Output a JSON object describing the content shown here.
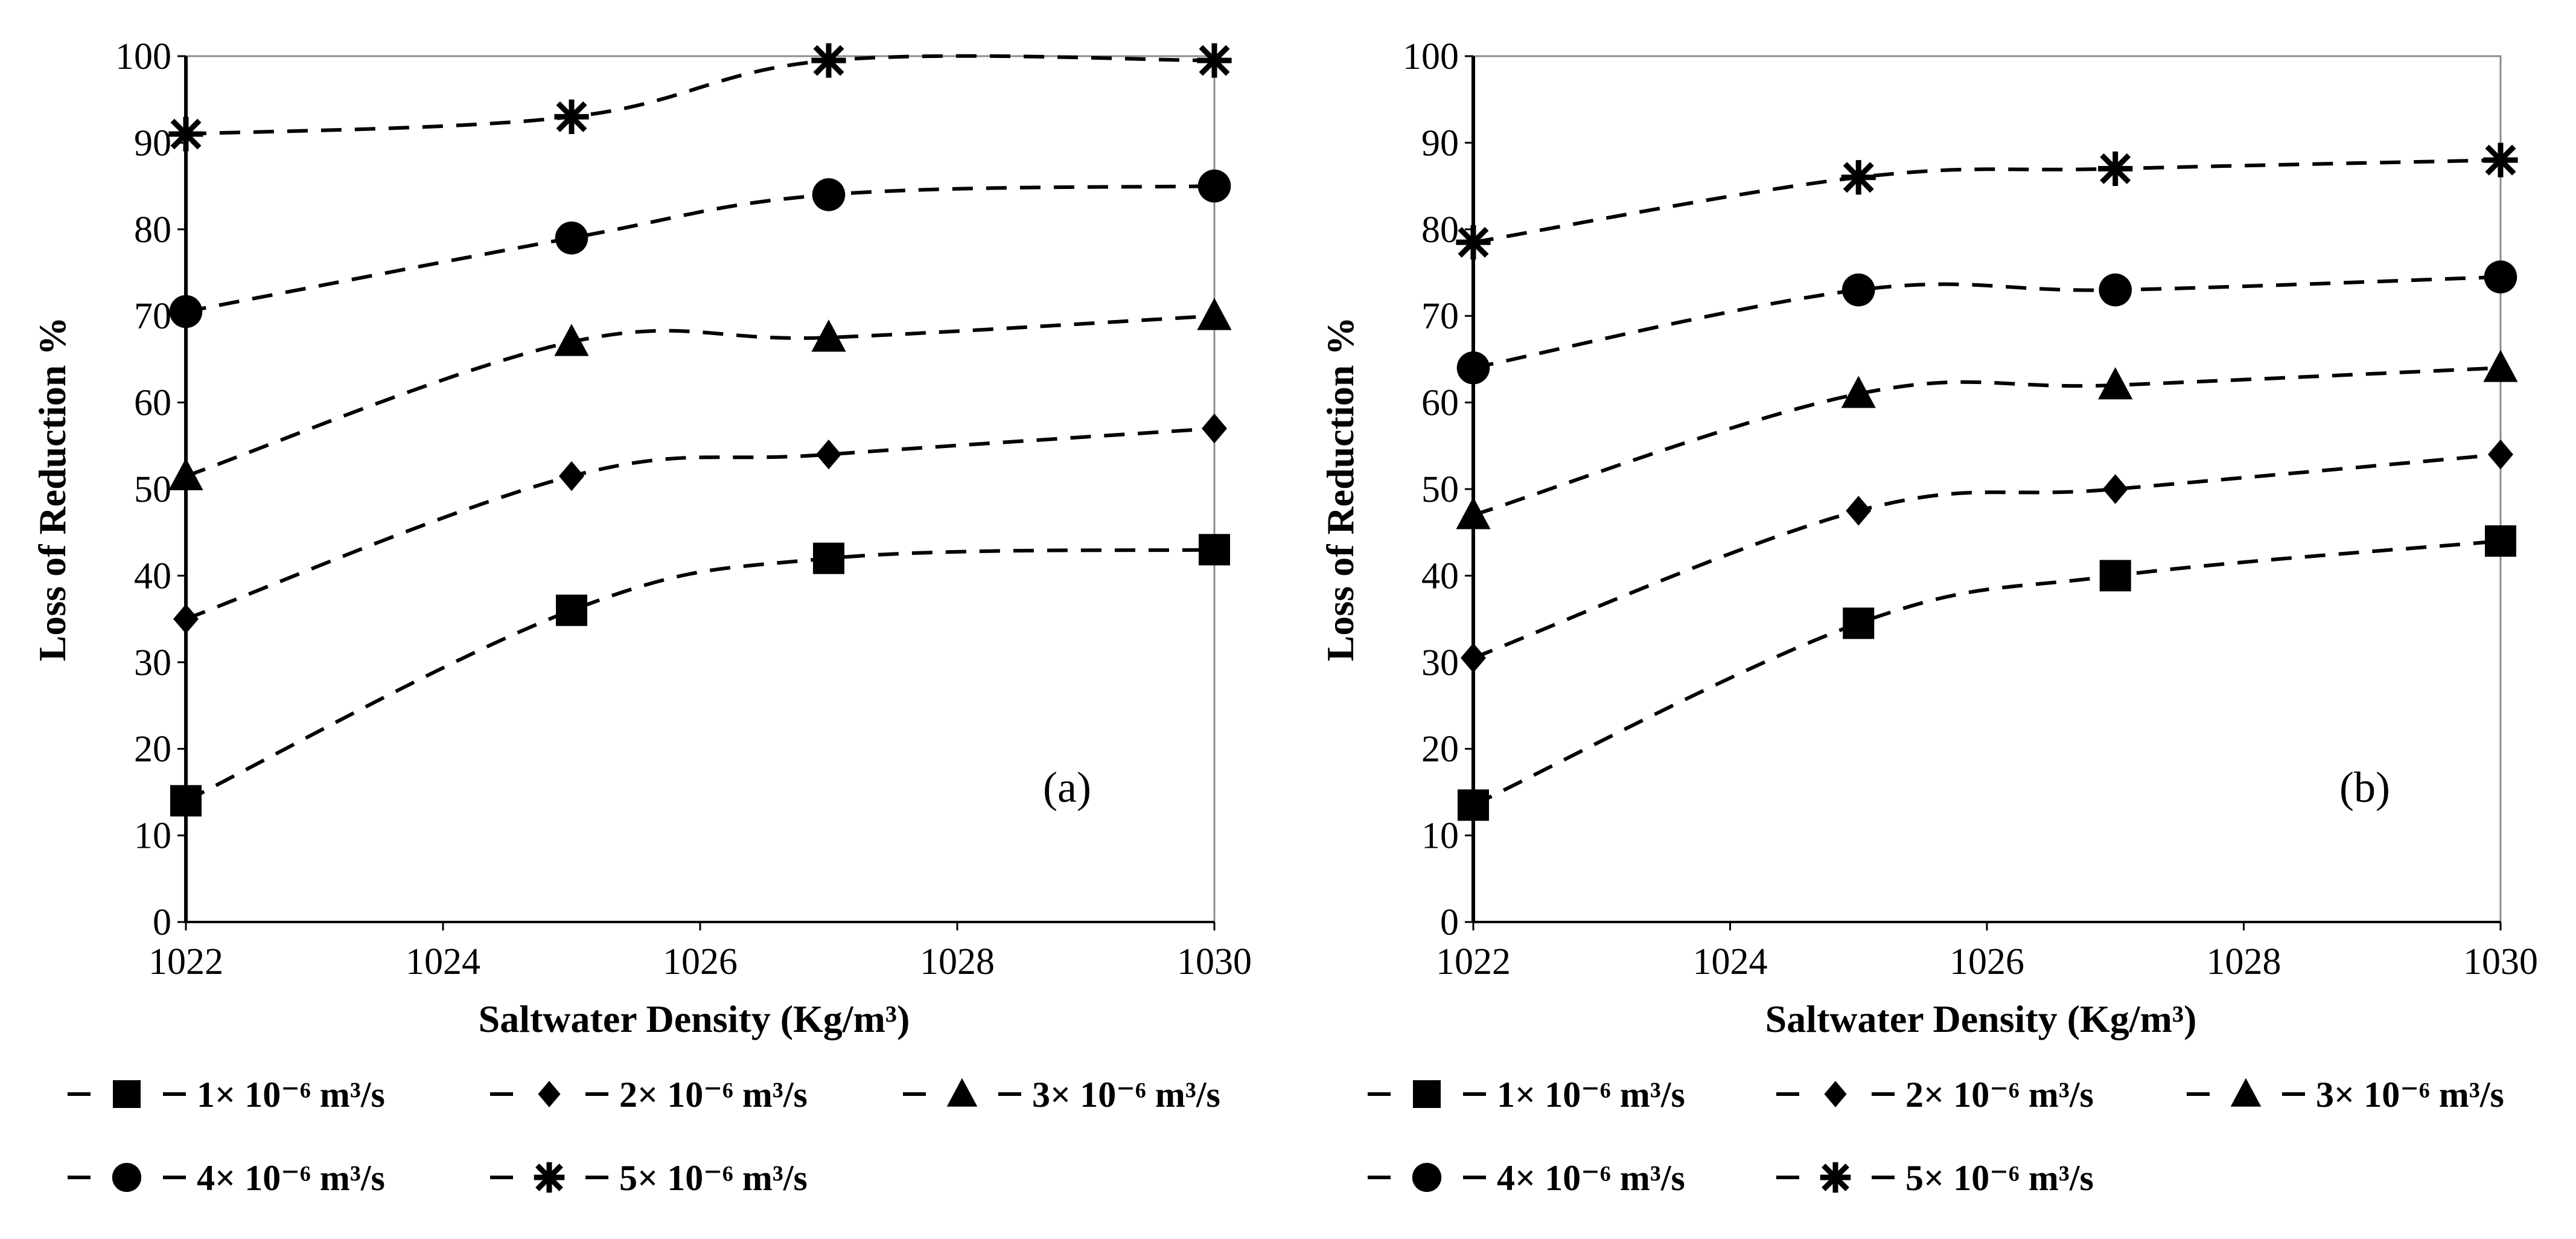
{
  "chart_data": [
    {
      "type": "line",
      "panel_label": "(a)",
      "xlabel": "Saltwater Density (Kg/m³)",
      "ylabel": "Loss of Reduction %",
      "xlim": [
        1022,
        1030
      ],
      "ylim": [
        0,
        100
      ],
      "x_ticks": [
        "1022",
        "1024",
        "1026",
        "1028",
        "1030"
      ],
      "y_ticks": [
        "0",
        "10",
        "20",
        "30",
        "40",
        "50",
        "60",
        "70",
        "80",
        "90",
        "100"
      ],
      "x": [
        1022,
        1025,
        1027,
        1030
      ],
      "series": [
        {
          "name": "1× 10⁻⁶ m³/s",
          "marker": "square",
          "values": [
            14,
            36,
            42,
            43
          ]
        },
        {
          "name": "2× 10⁻⁶ m³/s",
          "marker": "diamond",
          "values": [
            35,
            51.5,
            54,
            57
          ]
        },
        {
          "name": "3× 10⁻⁶ m³/s",
          "marker": "triangle",
          "values": [
            51.5,
            67,
            67.5,
            70
          ]
        },
        {
          "name": "4× 10⁻⁶ m³/s",
          "marker": "circle",
          "values": [
            70.5,
            79,
            84,
            85
          ]
        },
        {
          "name": "5× 10⁻⁶ m³/s",
          "marker": "star",
          "values": [
            91,
            93,
            99.5,
            99.5
          ]
        }
      ]
    },
    {
      "type": "line",
      "panel_label": "(b)",
      "xlabel": "Saltwater Density (Kg/m³)",
      "ylabel": "Loss of Reduction %",
      "xlim": [
        1022,
        1030
      ],
      "ylim": [
        0,
        100
      ],
      "x_ticks": [
        "1022",
        "1024",
        "1026",
        "1028",
        "1030"
      ],
      "y_ticks": [
        "0",
        "10",
        "20",
        "30",
        "40",
        "50",
        "60",
        "70",
        "80",
        "90",
        "100"
      ],
      "x": [
        1022,
        1025,
        1027,
        1030
      ],
      "series": [
        {
          "name": "1× 10⁻⁶ m³/s",
          "marker": "square",
          "values": [
            13.5,
            34.5,
            40,
            44
          ]
        },
        {
          "name": "2× 10⁻⁶ m³/s",
          "marker": "diamond",
          "values": [
            30.5,
            47.5,
            50,
            54
          ]
        },
        {
          "name": "3× 10⁻⁶ m³/s",
          "marker": "triangle",
          "values": [
            47,
            61,
            62,
            64
          ]
        },
        {
          "name": "4× 10⁻⁶ m³/s",
          "marker": "circle",
          "values": [
            64,
            73,
            73,
            74.5
          ]
        },
        {
          "name": "5× 10⁻⁶ m³/s",
          "marker": "star",
          "values": [
            78.5,
            86,
            87,
            88
          ]
        }
      ]
    }
  ],
  "colors": {
    "ink": "#000000",
    "background": "#ffffff"
  }
}
